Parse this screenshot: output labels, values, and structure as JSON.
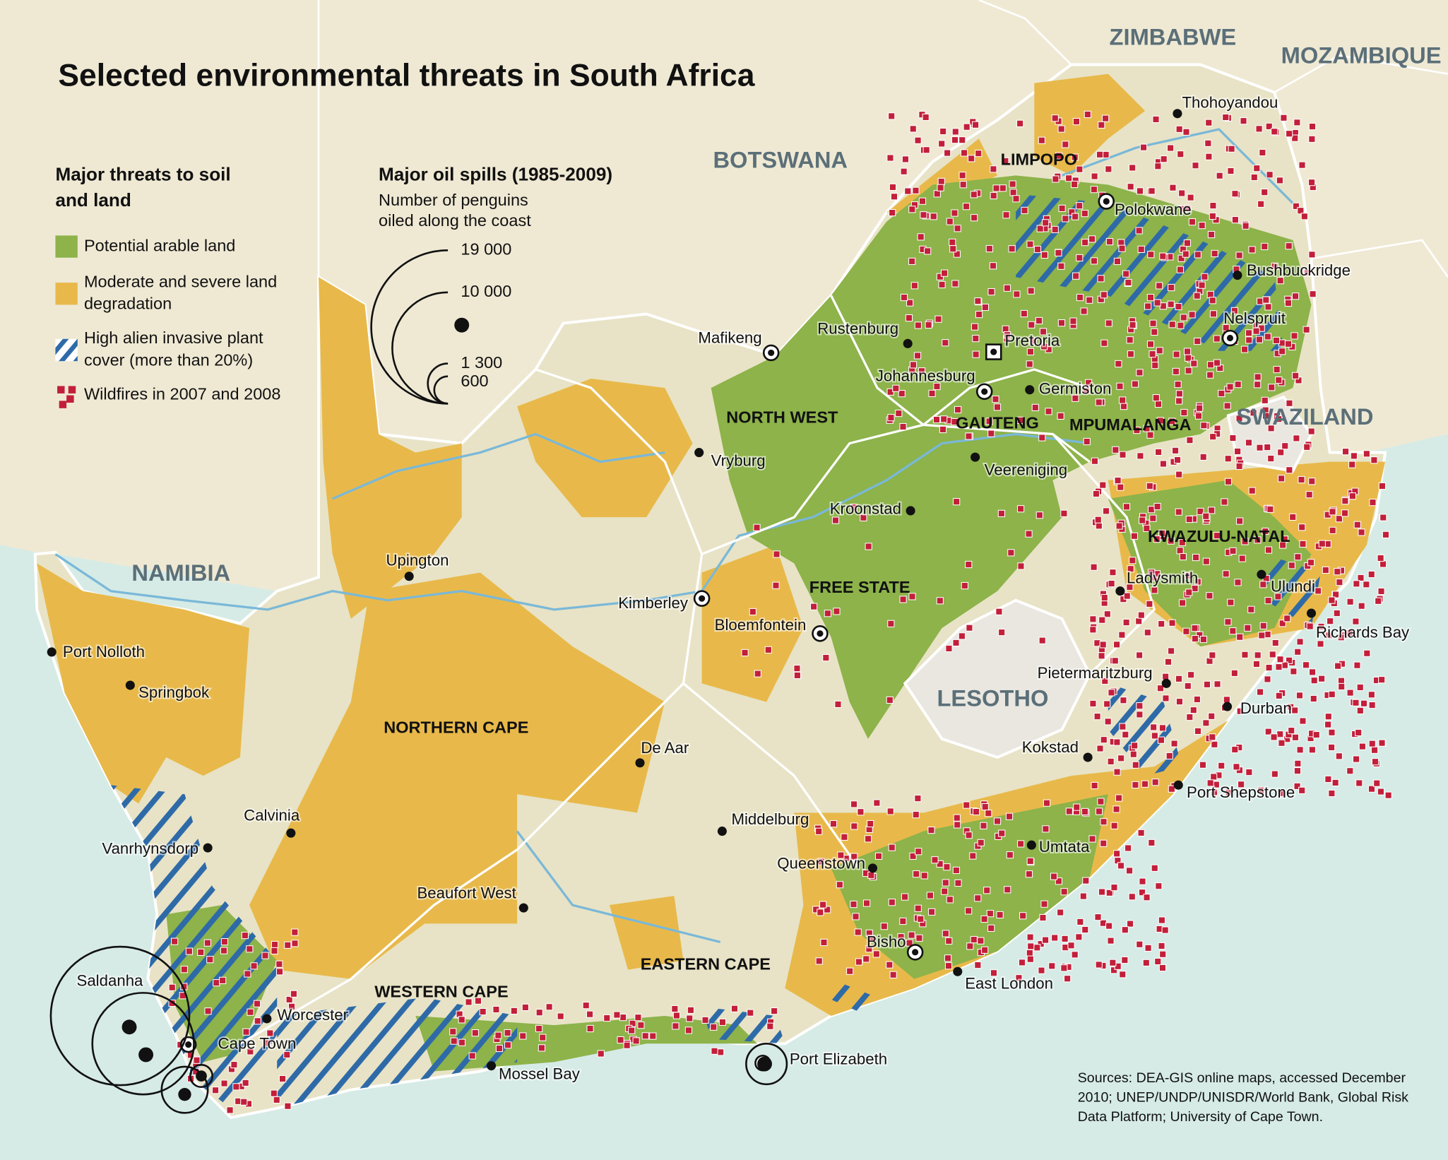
{
  "title": "Selected environmental threats in South Africa",
  "legend": {
    "heading_lines": [
      "Major threats to soil",
      "and land"
    ],
    "items": [
      {
        "lines": [
          "Potential arable land"
        ]
      },
      {
        "lines": [
          "Moderate and severe land",
          "degradation"
        ]
      },
      {
        "lines": [
          "High alien invasive plant",
          "cover (more than 20%)"
        ]
      },
      {
        "lines": [
          "Wildfires in 2007 and 2008"
        ]
      }
    ]
  },
  "oil_spills": {
    "heading": "Major oil spills (1985-2009)",
    "subheading_lines": [
      "Number of penguins",
      "oiled along the coast"
    ],
    "scale": [
      {
        "value": 19000,
        "label": "19 000"
      },
      {
        "value": 10000,
        "label": "10 000"
      },
      {
        "value": 1300,
        "label": "1 300"
      },
      {
        "value": 600,
        "label": "600"
      }
    ]
  },
  "countries": [
    "ZIMBABWE",
    "MOZAMBIQUE",
    "BOTSWANA",
    "NAMIBIA",
    "SWAZILAND",
    "LESOTHO"
  ],
  "provinces": [
    "LIMPOPO",
    "NORTH WEST",
    "GAUTENG",
    "MPUMALANGA",
    "KWAZULU-NATAL",
    "FREE STATE",
    "NORTHERN CAPE",
    "EASTERN CAPE",
    "WESTERN CAPE"
  ],
  "cities": [
    "Thohoyandou",
    "Polokwane",
    "Bushbuckridge",
    "Nelspruit",
    "Rustenburg",
    "Pretoria",
    "Mafikeng",
    "Johannesburg",
    "Germiston",
    "Vryburg",
    "Veereniging",
    "Kroonstad",
    "Upington",
    "Kimberley",
    "Bloemfontein",
    "Port Nolloth",
    "Springbok",
    "Ladysmith",
    "Ulundi",
    "Richards Bay",
    "Pietermaritzburg",
    "Durban",
    "De Aar",
    "Kokstad",
    "Port Shepstone",
    "Calvinia",
    "Middelburg",
    "Vanrhynsdorp",
    "Umtata",
    "Queenstown",
    "Beaufort West",
    "Bisho",
    "East London",
    "Saldanha",
    "Worcester",
    "Cape Town",
    "Mossel Bay",
    "Port Elizabeth"
  ],
  "sources_lines": [
    "Sources: DEA-GIS online maps, accessed December",
    "2010; UNEP/UNDP/UNISDR/World Bank, Global Risk",
    "Data Platform;  University of Cape Town."
  ]
}
